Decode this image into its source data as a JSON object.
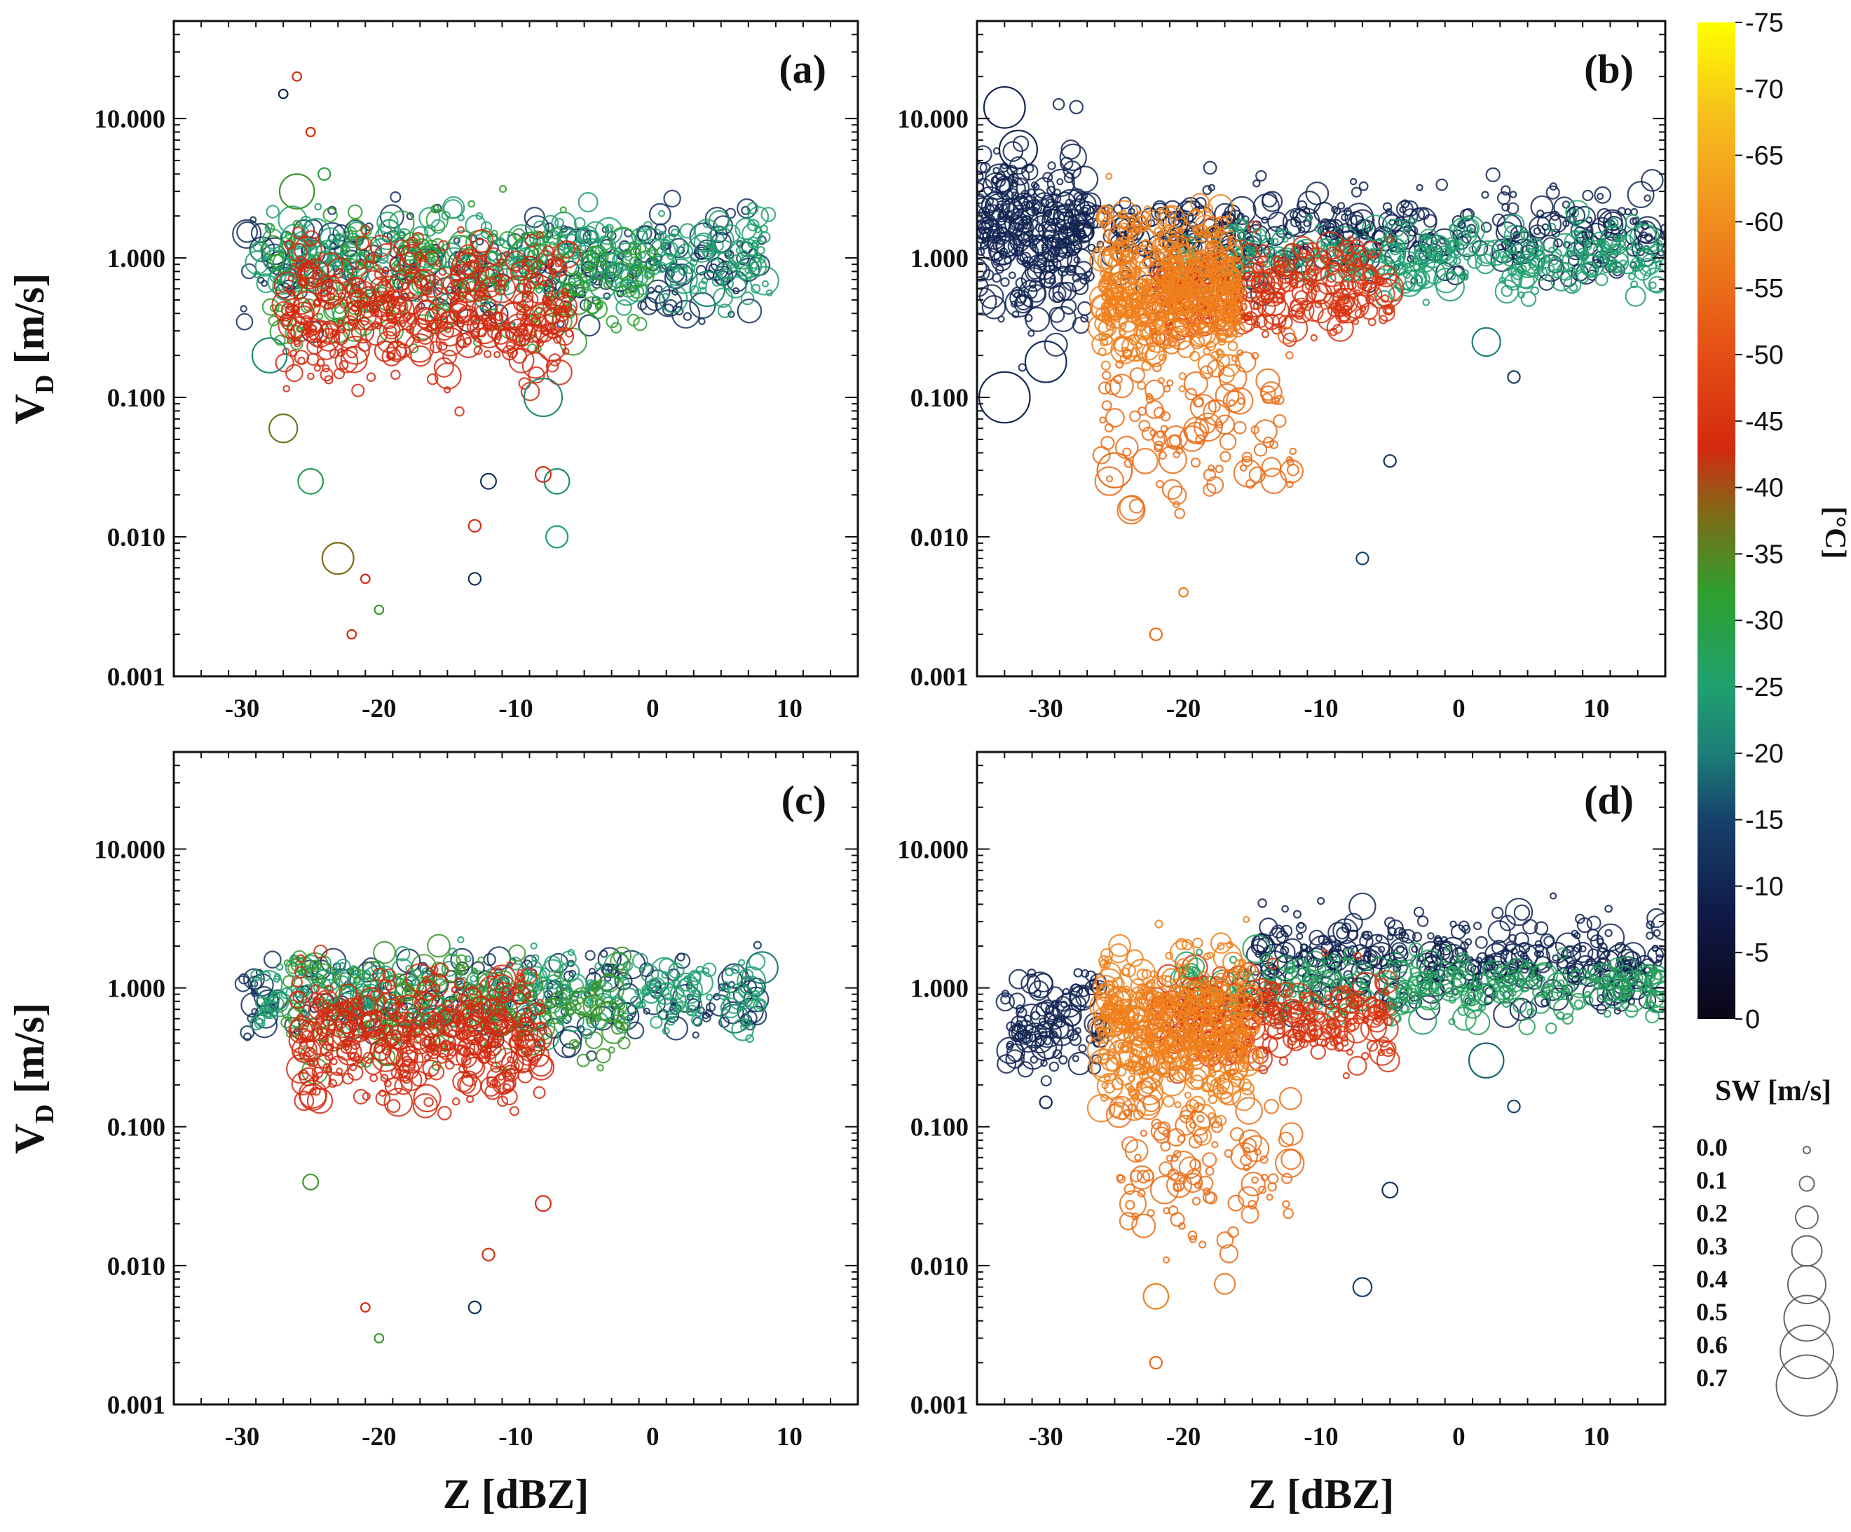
{
  "chart_data": [
    {
      "type": "scatter",
      "panel_label": "(a)",
      "xlabel": "",
      "ylabel": "V_D [m/s]",
      "xlim": [
        -35,
        15
      ],
      "ylim": [
        0.001,
        50
      ],
      "yscale": "log",
      "xticks": [
        "-30",
        "-20",
        "-10",
        "0",
        "10"
      ],
      "yticks": [
        "0.001",
        "0.010",
        "0.100",
        "1.000",
        "10.000"
      ],
      "clouds": [
        {
          "temp": -12,
          "x": [
            -30,
            8
          ],
          "ymid": 0.9,
          "yspread": 0.35,
          "n": 260
        },
        {
          "temp": -25,
          "x": [
            -29,
            9
          ],
          "ymid": 1.0,
          "yspread": 0.3,
          "n": 320
        },
        {
          "temp": -32,
          "x": [
            -28,
            0
          ],
          "ymid": 0.7,
          "yspread": 0.4,
          "n": 200
        },
        {
          "temp": -43,
          "x": [
            -27,
            -6
          ],
          "ymid": 0.45,
          "yspread": 0.45,
          "n": 420
        }
      ],
      "points": [
        {
          "x": -27,
          "y": 15,
          "sw": 0.05,
          "temp": -10
        },
        {
          "x": -26,
          "y": 20,
          "sw": 0.05,
          "temp": -42
        },
        {
          "x": -25,
          "y": 8,
          "sw": 0.05,
          "temp": -43
        },
        {
          "x": -24,
          "y": 4,
          "sw": 0.1,
          "temp": -30
        },
        {
          "x": -23,
          "y": 0.007,
          "sw": 0.4,
          "temp": -38
        },
        {
          "x": -21,
          "y": 0.005,
          "sw": 0.05,
          "temp": -43
        },
        {
          "x": -20,
          "y": 0.003,
          "sw": 0.05,
          "temp": -33
        },
        {
          "x": -22,
          "y": 0.002,
          "sw": 0.05,
          "temp": -43
        },
        {
          "x": -13,
          "y": 0.005,
          "sw": 0.1,
          "temp": -12
        },
        {
          "x": -13,
          "y": 0.012,
          "sw": 0.1,
          "temp": -44
        },
        {
          "x": -12,
          "y": 0.025,
          "sw": 0.15,
          "temp": -12
        },
        {
          "x": -7,
          "y": 0.01,
          "sw": 0.25,
          "temp": -25
        },
        {
          "x": -7,
          "y": 0.025,
          "sw": 0.3,
          "temp": -22
        },
        {
          "x": -8,
          "y": 0.028,
          "sw": 0.15,
          "temp": -44
        },
        {
          "x": -28,
          "y": 0.2,
          "sw": 0.45,
          "temp": -22
        },
        {
          "x": -27,
          "y": 0.06,
          "sw": 0.35,
          "temp": -36
        },
        {
          "x": -25,
          "y": 0.025,
          "sw": 0.3,
          "temp": -28
        },
        {
          "x": -8,
          "y": 0.1,
          "sw": 0.5,
          "temp": -22
        },
        {
          "x": 4,
          "y": 0.6,
          "sw": 0.45,
          "temp": -22
        },
        {
          "x": -26,
          "y": 3,
          "sw": 0.45,
          "temp": -33
        }
      ]
    },
    {
      "type": "scatter",
      "panel_label": "(b)",
      "xlabel": "",
      "ylabel": "",
      "xlim": [
        -35,
        15
      ],
      "ylim": [
        0.001,
        50
      ],
      "yscale": "log",
      "xticks": [
        "-30",
        "-20",
        "-10",
        "0",
        "10"
      ],
      "yticks": [
        "0.001",
        "0.010",
        "0.100",
        "1.000",
        "10.000"
      ],
      "clouds": [
        {
          "temp": -10,
          "x": [
            -35,
            -27
          ],
          "ymid": 1.5,
          "yspread": 0.55,
          "n": 260
        },
        {
          "temp": -10,
          "x": [
            -30,
            15
          ],
          "ymid": 1.5,
          "yspread": 0.3,
          "n": 420
        },
        {
          "temp": -25,
          "x": [
            -20,
            15
          ],
          "ymid": 1.0,
          "yspread": 0.22,
          "n": 320
        },
        {
          "temp": -45,
          "x": [
            -22,
            -5
          ],
          "ymid": 0.6,
          "yspread": 0.3,
          "n": 300
        },
        {
          "temp": -58,
          "x": [
            -26,
            -16
          ],
          "ymid": 0.6,
          "yspread": 0.5,
          "n": 520
        },
        {
          "temp": -55,
          "x": [
            -26,
            -12
          ],
          "ymid": 0.06,
          "yspread": 0.55,
          "n": 120
        }
      ],
      "points": [
        {
          "x": -33,
          "y": 12,
          "sw": 0.55,
          "temp": -10
        },
        {
          "x": -32,
          "y": 6,
          "sw": 0.5,
          "temp": -10
        },
        {
          "x": -33,
          "y": 0.1,
          "sw": 0.7,
          "temp": -10
        },
        {
          "x": -30,
          "y": 0.18,
          "sw": 0.55,
          "temp": -12
        },
        {
          "x": -25,
          "y": 0.03,
          "sw": 0.45,
          "temp": -55
        },
        {
          "x": -22,
          "y": 0.002,
          "sw": 0.1,
          "temp": -55
        },
        {
          "x": -20,
          "y": 0.004,
          "sw": 0.05,
          "temp": -58
        },
        {
          "x": -7,
          "y": 0.007,
          "sw": 0.1,
          "temp": -15
        },
        {
          "x": 4,
          "y": 0.14,
          "sw": 0.1,
          "temp": -15
        },
        {
          "x": 2,
          "y": 0.25,
          "sw": 0.35,
          "temp": -20
        },
        {
          "x": -5,
          "y": 0.035,
          "sw": 0.1,
          "temp": -12
        }
      ]
    },
    {
      "type": "scatter",
      "panel_label": "(c)",
      "xlabel": "Z [dBZ]",
      "ylabel": "V_D [m/s]",
      "xlim": [
        -35,
        15
      ],
      "ylim": [
        0.001,
        50
      ],
      "yscale": "log",
      "xticks": [
        "-30",
        "-20",
        "-10",
        "0",
        "10"
      ],
      "yticks": [
        "0.001",
        "0.010",
        "0.100",
        "1.000",
        "10.000"
      ],
      "clouds": [
        {
          "temp": -12,
          "x": [
            -30,
            8
          ],
          "ymid": 0.85,
          "yspread": 0.3,
          "n": 220
        },
        {
          "temp": -25,
          "x": [
            -29,
            8
          ],
          "ymid": 0.9,
          "yspread": 0.25,
          "n": 300
        },
        {
          "temp": -33,
          "x": [
            -27,
            -2
          ],
          "ymid": 0.7,
          "yspread": 0.35,
          "n": 200
        },
        {
          "temp": -43,
          "x": [
            -26,
            -8
          ],
          "ymid": 0.45,
          "yspread": 0.4,
          "n": 400
        }
      ],
      "points": [
        {
          "x": -21,
          "y": 0.005,
          "sw": 0.05,
          "temp": -43
        },
        {
          "x": -20,
          "y": 0.003,
          "sw": 0.05,
          "temp": -33
        },
        {
          "x": -13,
          "y": 0.005,
          "sw": 0.1,
          "temp": -12
        },
        {
          "x": -12,
          "y": 0.012,
          "sw": 0.1,
          "temp": -44
        },
        {
          "x": -8,
          "y": 0.028,
          "sw": 0.15,
          "temp": -44
        },
        {
          "x": 8,
          "y": 1.4,
          "sw": 0.4,
          "temp": -20
        },
        {
          "x": 6,
          "y": 0.6,
          "sw": 0.35,
          "temp": -22
        },
        {
          "x": -25,
          "y": 0.04,
          "sw": 0.15,
          "temp": -33
        }
      ]
    },
    {
      "type": "scatter",
      "panel_label": "(d)",
      "xlabel": "Z [dBZ]",
      "ylabel": "",
      "xlim": [
        -35,
        15
      ],
      "ylim": [
        0.001,
        50
      ],
      "yscale": "log",
      "xticks": [
        "-30",
        "-20",
        "-10",
        "0",
        "10"
      ],
      "yticks": [
        "0.001",
        "0.010",
        "0.100",
        "1.000",
        "10.000"
      ],
      "clouds": [
        {
          "temp": -10,
          "x": [
            -33,
            -26
          ],
          "ymid": 0.6,
          "yspread": 0.35,
          "n": 110
        },
        {
          "temp": -10,
          "x": [
            -15,
            15
          ],
          "ymid": 1.6,
          "yspread": 0.3,
          "n": 380
        },
        {
          "temp": -27,
          "x": [
            -20,
            15
          ],
          "ymid": 1.0,
          "yspread": 0.22,
          "n": 300
        },
        {
          "temp": -45,
          "x": [
            -22,
            -5
          ],
          "ymid": 0.6,
          "yspread": 0.3,
          "n": 280
        },
        {
          "temp": -58,
          "x": [
            -26,
            -15
          ],
          "ymid": 0.5,
          "yspread": 0.5,
          "n": 480
        },
        {
          "temp": -55,
          "x": [
            -25,
            -12
          ],
          "ymid": 0.05,
          "yspread": 0.55,
          "n": 110
        }
      ],
      "points": [
        {
          "x": -22,
          "y": 0.002,
          "sw": 0.1,
          "temp": -55
        },
        {
          "x": -22,
          "y": 0.006,
          "sw": 0.3,
          "temp": -58
        },
        {
          "x": -7,
          "y": 0.007,
          "sw": 0.2,
          "temp": -15
        },
        {
          "x": 4,
          "y": 0.14,
          "sw": 0.1,
          "temp": -15
        },
        {
          "x": 2,
          "y": 0.3,
          "sw": 0.45,
          "temp": -18
        },
        {
          "x": -5,
          "y": 0.035,
          "sw": 0.15,
          "temp": -12
        },
        {
          "x": -30,
          "y": 0.15,
          "sw": 0.1,
          "temp": -10
        }
      ]
    }
  ],
  "colorbar": {
    "unit": "[°C]",
    "range": [
      0,
      -75
    ],
    "ticks": [
      "-75",
      "-70",
      "-65",
      "-60",
      "-55",
      "-50",
      "-45",
      "-40",
      "-35",
      "-30",
      "-25",
      "-20",
      "-15",
      "-10",
      "-5",
      "0"
    ],
    "stops": [
      {
        "t": 0,
        "color": "#0b0618"
      },
      {
        "t": -8,
        "color": "#101a48"
      },
      {
        "t": -15,
        "color": "#16416b"
      },
      {
        "t": -20,
        "color": "#1d7e78"
      },
      {
        "t": -25,
        "color": "#20a070"
      },
      {
        "t": -32,
        "color": "#2da02e"
      },
      {
        "t": -38,
        "color": "#7f6a18"
      },
      {
        "t": -43,
        "color": "#d42a10"
      },
      {
        "t": -50,
        "color": "#e44e14"
      },
      {
        "t": -60,
        "color": "#f08c1e"
      },
      {
        "t": -68,
        "color": "#f6c01c"
      },
      {
        "t": -75,
        "color": "#ffff00"
      }
    ]
  },
  "size_legend": {
    "title": "SW [m/s]",
    "labels": [
      "0.0",
      "0.1",
      "0.2",
      "0.3",
      "0.4",
      "0.5",
      "0.6",
      "0.7"
    ],
    "values": [
      0.0,
      0.1,
      0.2,
      0.3,
      0.4,
      0.5,
      0.6,
      0.7
    ]
  }
}
